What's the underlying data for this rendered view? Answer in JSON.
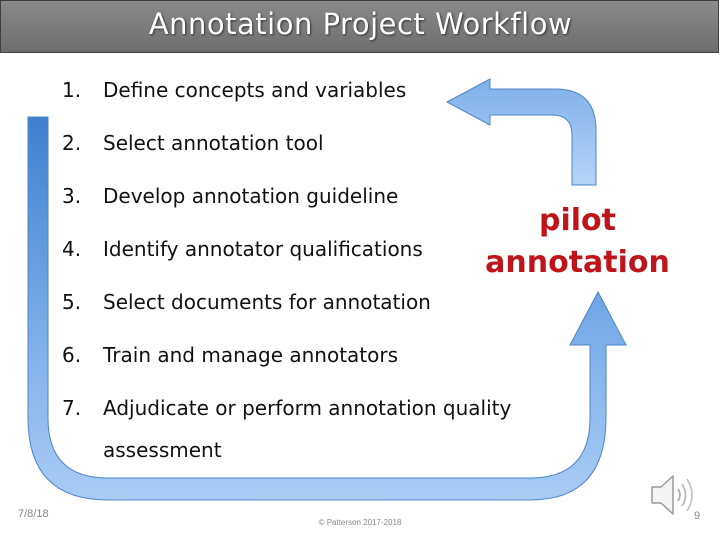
{
  "slide": {
    "title": "Annotation Project Workflow",
    "steps": [
      {
        "number": "1.",
        "text": "Define concepts and variables"
      },
      {
        "number": "2.",
        "text": "Select annotation tool"
      },
      {
        "number": "3.",
        "text": "Develop annotation guideline"
      },
      {
        "number": "4.",
        "text": "Identify annotator qualifications"
      },
      {
        "number": "5.",
        "text": "Select documents for annotation"
      },
      {
        "number": "6.",
        "text": "Train and manage annotators"
      },
      {
        "number": "7.",
        "text": "Adjudicate or perform annotation quality",
        "continuation": "assessment"
      }
    ],
    "callout": {
      "line1": "pilot",
      "line2": "annotation",
      "color": "#c0141b"
    }
  },
  "footer": {
    "date": "7/8/18",
    "copyright": "© Patterson 2017-2018",
    "page_number": "9"
  },
  "icons": {
    "audio": "speaker-icon"
  },
  "colors": {
    "arrow_dark": "#3e80cf",
    "arrow_light": "#a9ccf5",
    "title_bar": "#7a7a7a"
  }
}
